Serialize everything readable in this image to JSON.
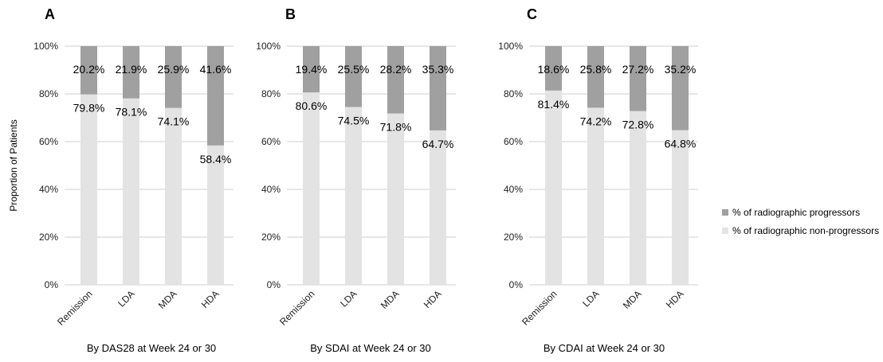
{
  "legend": {
    "items": [
      {
        "label": "% of radiographic progressors",
        "color": "#a0a0a0"
      },
      {
        "label": "% of radiographic non-progressors",
        "color": "#e3e3e3"
      }
    ]
  },
  "chart_data": [
    {
      "type": "bar",
      "stacked": true,
      "panel": "A",
      "xlabel": "By DAS28 at Week 24 or 30",
      "ylabel": "Proportion of Patients",
      "ylim": [
        0,
        100
      ],
      "yticks": [
        "0%",
        "20%",
        "40%",
        "60%",
        "80%",
        "100%"
      ],
      "grid": true,
      "categories": [
        "Remission",
        "LDA",
        "MDA",
        "HDA"
      ],
      "series": [
        {
          "name": "% of radiographic non-progressors",
          "values": [
            79.8,
            78.1,
            74.1,
            58.4
          ],
          "labels": [
            "79.8%",
            "78.1%",
            "74.1%",
            "58.4%"
          ],
          "color": "#e3e3e3"
        },
        {
          "name": "% of radiographic progressors",
          "values": [
            20.2,
            21.9,
            25.9,
            41.6
          ],
          "labels": [
            "20.2%",
            "21.9%",
            "25.9%",
            "41.6%"
          ],
          "color": "#a0a0a0"
        }
      ]
    },
    {
      "type": "bar",
      "stacked": true,
      "panel": "B",
      "xlabel": "By SDAI at Week 24 or 30",
      "ylabel": "",
      "ylim": [
        0,
        100
      ],
      "yticks": [
        "0%",
        "20%",
        "40%",
        "60%",
        "80%",
        "100%"
      ],
      "grid": true,
      "categories": [
        "Remission",
        "LDA",
        "MDA",
        "HDA"
      ],
      "series": [
        {
          "name": "% of radiographic non-progressors",
          "values": [
            80.6,
            74.5,
            71.8,
            64.7
          ],
          "labels": [
            "80.6%",
            "74.5%",
            "71.8%",
            "64.7%"
          ],
          "color": "#e3e3e3"
        },
        {
          "name": "% of radiographic progressors",
          "values": [
            19.4,
            25.5,
            28.2,
            35.3
          ],
          "labels": [
            "19.4%",
            "25.5%",
            "28.2%",
            "35.3%"
          ],
          "color": "#a0a0a0"
        }
      ]
    },
    {
      "type": "bar",
      "stacked": true,
      "panel": "C",
      "xlabel": "By CDAI at Week 24 or 30",
      "ylabel": "",
      "ylim": [
        0,
        100
      ],
      "yticks": [
        "0%",
        "20%",
        "40%",
        "60%",
        "80%",
        "100%"
      ],
      "grid": true,
      "categories": [
        "Remission",
        "LDA",
        "MDA",
        "HDA"
      ],
      "series": [
        {
          "name": "% of radiographic non-progressors",
          "values": [
            81.4,
            74.2,
            72.8,
            64.8
          ],
          "labels": [
            "81.4%",
            "74.2%",
            "72.8%",
            "64.8%"
          ],
          "color": "#e3e3e3"
        },
        {
          "name": "% of radiographic progressors",
          "values": [
            18.6,
            25.8,
            27.2,
            35.2
          ],
          "labels": [
            "18.6%",
            "25.8%",
            "27.2%",
            "35.2%"
          ],
          "color": "#a0a0a0"
        }
      ]
    }
  ]
}
